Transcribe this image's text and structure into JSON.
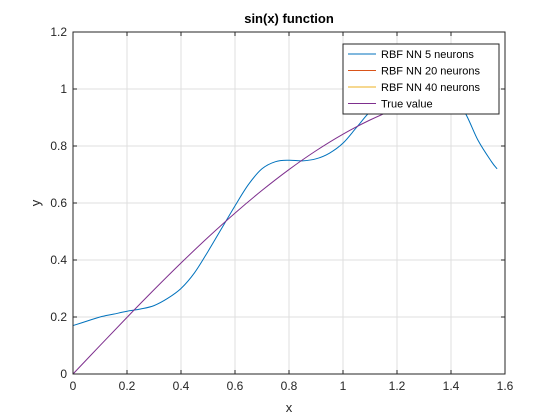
{
  "chart_data": {
    "type": "line",
    "title": "sin(x) function",
    "xlabel": "x",
    "ylabel": "y",
    "xlim": [
      0,
      1.6
    ],
    "ylim": [
      0,
      1.2
    ],
    "xticks": [
      "0",
      "0.2",
      "0.4",
      "0.6",
      "0.8",
      "1",
      "1.2",
      "1.4",
      "1.6"
    ],
    "yticks": [
      "0",
      "0.2",
      "0.4",
      "0.6",
      "0.8",
      "1",
      "1.2"
    ],
    "grid": true,
    "legend_position": "top-right",
    "series": [
      {
        "name": "RBF NN 5 neurons",
        "color": "#0072BD",
        "x": [
          0,
          0.05,
          0.1,
          0.15,
          0.2,
          0.25,
          0.3,
          0.35,
          0.4,
          0.45,
          0.5,
          0.55,
          0.6,
          0.65,
          0.7,
          0.75,
          0.8,
          0.85,
          0.9,
          0.95,
          1.0,
          1.05,
          1.1,
          1.15,
          1.2,
          1.25,
          1.3,
          1.35,
          1.4,
          1.45,
          1.5,
          1.55,
          1.5708
        ],
        "y": [
          0.17,
          0.185,
          0.2,
          0.21,
          0.22,
          0.228,
          0.24,
          0.265,
          0.3,
          0.355,
          0.43,
          0.51,
          0.59,
          0.665,
          0.72,
          0.745,
          0.75,
          0.748,
          0.755,
          0.775,
          0.81,
          0.865,
          0.92,
          0.955,
          0.97,
          0.975,
          0.975,
          0.975,
          0.97,
          0.92,
          0.82,
          0.745,
          0.72
        ]
      },
      {
        "name": "RBF NN 20 neurons",
        "color": "#D95319",
        "x": [],
        "y": []
      },
      {
        "name": "RBF NN 40 neurons",
        "color": "#EDB120",
        "x": [],
        "y": []
      },
      {
        "name": "True value",
        "color": "#7E2F8E",
        "x": [
          0,
          0.1,
          0.2,
          0.3,
          0.4,
          0.5,
          0.6,
          0.7,
          0.8,
          0.9,
          1.0,
          1.1,
          1.2,
          1.3,
          1.4,
          1.5,
          1.5708
        ],
        "y": [
          0,
          0.0998,
          0.1987,
          0.2955,
          0.3894,
          0.4794,
          0.5646,
          0.6442,
          0.7174,
          0.7833,
          0.8415,
          0.8912,
          0.932,
          0.9636,
          0.9854,
          0.9975,
          1.0
        ]
      }
    ]
  }
}
